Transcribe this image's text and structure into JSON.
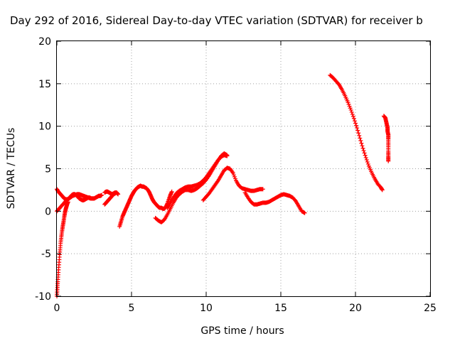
{
  "chart_data": {
    "type": "scatter",
    "title": "Day 292 of 2016, Sidereal Day-to-day VTEC variation (SDTVAR) for receiver b",
    "xlabel": "GPS time / hours",
    "ylabel": "SDTVAR / TECUs",
    "xlim": [
      0,
      25
    ],
    "ylim": [
      -10,
      20
    ],
    "xticks": [
      "0",
      "5",
      "10",
      "15",
      "20",
      "25"
    ],
    "yticks": [
      "-10",
      "-5",
      "0",
      "5",
      "10",
      "15",
      "20"
    ],
    "grid": true,
    "marker": "plus",
    "color": "#ff0000",
    "series": [
      {
        "segments": [
          {
            "x": [
              0.0,
              0.03,
              0.06,
              0.1,
              0.15,
              0.2,
              0.25,
              0.3,
              0.35,
              0.4,
              0.45,
              0.5,
              0.55,
              0.6,
              0.65,
              0.7,
              0.75
            ],
            "y": [
              -10.0,
              -9.2,
              -8.3,
              -7.2,
              -6.0,
              -4.8,
              -3.8,
              -3.0,
              -2.3,
              -1.7,
              -1.2,
              -0.6,
              -0.1,
              0.3,
              0.6,
              0.9,
              1.1
            ]
          },
          {
            "x": [
              0.0,
              0.1,
              0.2,
              0.3,
              0.4,
              0.5,
              0.6,
              0.7,
              0.8,
              0.9,
              1.0,
              1.1,
              1.2,
              1.3,
              1.4,
              1.5,
              1.6,
              1.7,
              1.8,
              1.9,
              2.0,
              2.1,
              2.2,
              2.3,
              2.4,
              2.5,
              2.6,
              2.7,
              2.8,
              2.9,
              3.0
            ],
            "y": [
              2.6,
              2.3,
              2.1,
              1.9,
              1.7,
              1.5,
              1.4,
              1.4,
              1.5,
              1.7,
              1.9,
              2.0,
              2.0,
              1.9,
              1.7,
              1.5,
              1.4,
              1.3,
              1.3,
              1.4,
              1.5,
              1.6,
              1.6,
              1.5,
              1.5,
              1.5,
              1.6,
              1.7,
              1.8,
              1.8,
              1.9
            ]
          },
          {
            "x": [
              0.0,
              0.15,
              0.3,
              0.45,
              0.6,
              0.75,
              0.9,
              1.05,
              1.2,
              1.35,
              1.5,
              1.65,
              1.8,
              1.95,
              2.1,
              2.25
            ],
            "y": [
              0.0,
              0.3,
              0.6,
              0.9,
              1.2,
              1.4,
              1.6,
              1.8,
              1.9,
              2.0,
              2.0,
              1.9,
              1.8,
              1.7,
              1.6,
              1.5
            ]
          },
          {
            "x": [
              3.2,
              3.3,
              3.4,
              3.5,
              3.6,
              3.7,
              3.8,
              3.9,
              4.0
            ],
            "y": [
              0.8,
              1.0,
              1.2,
              1.4,
              1.6,
              1.8,
              2.0,
              2.1,
              2.2
            ]
          },
          {
            "x": [
              3.2,
              3.3,
              3.4,
              3.5,
              3.6,
              3.7,
              3.8,
              3.9,
              4.0,
              4.1
            ],
            "y": [
              2.2,
              2.3,
              2.3,
              2.2,
              2.1,
              2.0,
              2.1,
              2.2,
              2.2,
              2.0
            ]
          },
          {
            "x": [
              4.2,
              4.3,
              4.4,
              4.5,
              4.6,
              4.7,
              4.8,
              4.9,
              5.0,
              5.1,
              5.2,
              5.3,
              5.4,
              5.5,
              5.6,
              5.7,
              5.8,
              5.9,
              6.0,
              6.1,
              6.2,
              6.3,
              6.4,
              6.5,
              6.6,
              6.7,
              6.8,
              6.9,
              7.0,
              7.1,
              7.2,
              7.3,
              7.4,
              7.5,
              7.6,
              7.7
            ],
            "y": [
              -1.8,
              -1.2,
              -0.6,
              -0.2,
              0.2,
              0.6,
              1.0,
              1.4,
              1.8,
              2.1,
              2.4,
              2.6,
              2.8,
              2.9,
              3.0,
              2.9,
              2.9,
              2.8,
              2.7,
              2.5,
              2.2,
              1.8,
              1.4,
              1.1,
              0.9,
              0.7,
              0.5,
              0.4,
              0.4,
              0.3,
              0.3,
              0.5,
              0.9,
              1.4,
              1.9,
              2.3
            ]
          },
          {
            "x": [
              6.6,
              6.8,
              7.0,
              7.2,
              7.4,
              7.6,
              7.8,
              8.0,
              8.2,
              8.4,
              8.6,
              8.8,
              9.0,
              9.2,
              9.4,
              9.6,
              9.8,
              10.0,
              10.2,
              10.4,
              10.6,
              10.8,
              11.0,
              11.2,
              11.4
            ],
            "y": [
              -0.8,
              -1.1,
              -1.3,
              -1.0,
              -0.4,
              0.3,
              1.0,
              1.6,
              2.0,
              2.3,
              2.5,
              2.5,
              2.4,
              2.5,
              2.7,
              3.0,
              3.3,
              3.7,
              4.2,
              4.8,
              5.4,
              6.0,
              6.5,
              6.8,
              6.6
            ]
          },
          {
            "x": [
              7.4,
              7.6,
              7.8,
              8.0,
              8.2,
              8.4,
              8.6,
              8.8,
              9.0,
              9.2,
              9.4,
              9.6,
              9.8,
              10.0,
              10.2,
              10.4,
              10.6,
              10.8,
              11.0,
              11.2,
              11.4
            ],
            "y": [
              0.4,
              1.0,
              1.6,
              2.1,
              2.4,
              2.6,
              2.8,
              2.9,
              2.9,
              3.0,
              3.1,
              3.3,
              3.6,
              4.0,
              4.5,
              5.0,
              5.5,
              6.0,
              6.4,
              6.6,
              6.5
            ]
          },
          {
            "x": [
              9.8,
              10.0,
              10.2,
              10.4,
              10.6,
              10.8,
              11.0,
              11.2,
              11.4,
              11.6,
              11.8,
              12.0,
              12.2,
              12.4,
              12.6,
              12.8,
              13.0,
              13.2,
              13.4,
              13.6,
              13.8
            ],
            "y": [
              1.3,
              1.7,
              2.1,
              2.6,
              3.1,
              3.6,
              4.2,
              4.8,
              5.1,
              5.0,
              4.5,
              3.6,
              3.0,
              2.7,
              2.6,
              2.5,
              2.4,
              2.4,
              2.5,
              2.6,
              2.6
            ]
          },
          {
            "x": [
              12.6,
              12.8,
              13.0,
              13.2,
              13.4,
              13.6,
              13.8,
              14.0,
              14.2,
              14.4,
              14.6,
              14.8,
              15.0,
              15.2,
              15.4,
              15.6,
              15.8,
              16.0,
              16.2,
              16.4,
              16.6
            ],
            "y": [
              2.2,
              1.6,
              1.1,
              0.8,
              0.8,
              0.9,
              1.0,
              1.0,
              1.1,
              1.3,
              1.5,
              1.7,
              1.9,
              2.0,
              1.9,
              1.8,
              1.6,
              1.2,
              0.6,
              0.0,
              -0.2
            ]
          },
          {
            "x": [
              18.3,
              18.5,
              18.7,
              18.9,
              19.1,
              19.3,
              19.5,
              19.7,
              19.9,
              20.1,
              20.3,
              20.5,
              20.7,
              20.9,
              21.1,
              21.3,
              21.5,
              21.7,
              21.8
            ],
            "y": [
              16.0,
              15.7,
              15.3,
              14.9,
              14.3,
              13.6,
              12.8,
              11.9,
              10.9,
              9.8,
              8.6,
              7.4,
              6.3,
              5.3,
              4.5,
              3.8,
              3.2,
              2.8,
              2.5
            ]
          },
          {
            "x": [
              21.9,
              22.0,
              22.05,
              22.1,
              22.15,
              22.15,
              22.2,
              22.2,
              22.2,
              22.2,
              22.2,
              22.2
            ],
            "y": [
              11.2,
              11.0,
              10.6,
              10.2,
              9.8,
              9.4,
              9.0,
              8.5,
              7.8,
              7.0,
              6.4,
              5.9
            ]
          }
        ]
      }
    ]
  }
}
